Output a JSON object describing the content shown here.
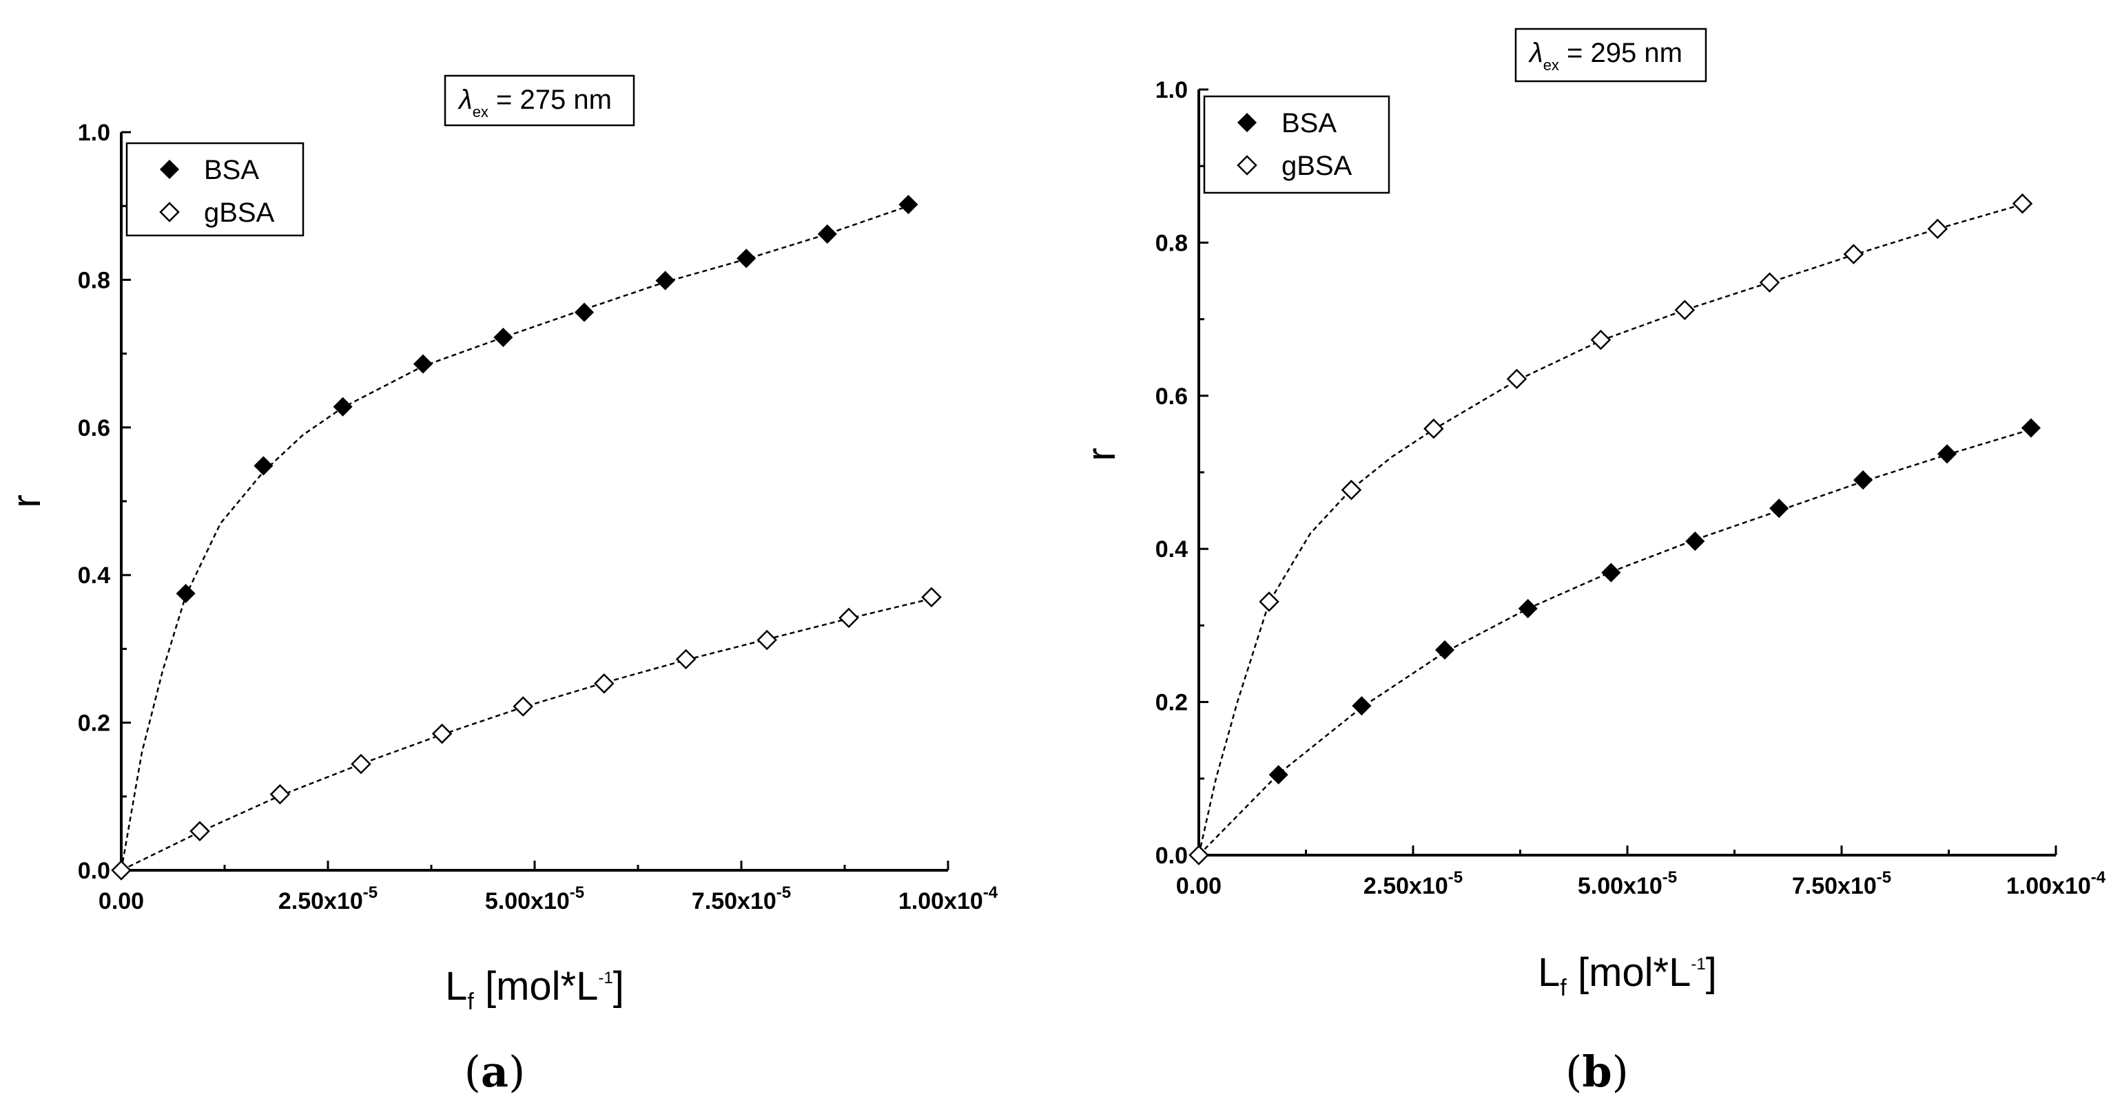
{
  "chart_data": [
    {
      "type": "scatter",
      "panel_label": "a",
      "annotation": {
        "symbol": "λ",
        "subscript": "ex",
        "rest": " = 275 nm"
      },
      "xlabel": {
        "main": "L",
        "sub": "f",
        "unit": " [mol*L",
        "sup": "-1",
        "close": "]"
      },
      "ylabel": "r",
      "xlim": [
        0,
        0.0001
      ],
      "ylim": [
        0,
        1.0
      ],
      "xtick_values": [
        0,
        2.5e-05,
        5e-05,
        7.5e-05,
        0.0001
      ],
      "xtick_labels": [
        {
          "m": "0.00",
          "e": ""
        },
        {
          "m": "2.50x10",
          "e": "-5"
        },
        {
          "m": "5.00x10",
          "e": "-5"
        },
        {
          "m": "7.50x10",
          "e": "-5"
        },
        {
          "m": "1.00x10",
          "e": "-4"
        }
      ],
      "ytick_values": [
        0,
        0.2,
        0.4,
        0.6,
        0.8,
        1.0
      ],
      "ytick_labels": [
        "0.0",
        "0.2",
        "0.4",
        "0.6",
        "0.8",
        "1.0"
      ],
      "legend_position": "top-left",
      "series": [
        {
          "name": "BSA",
          "marker": "filled-diamond",
          "x": [
            0,
            7.8e-06,
            1.72e-05,
            2.68e-05,
            3.65e-05,
            4.62e-05,
            5.6e-05,
            6.58e-05,
            7.56e-05,
            8.54e-05,
            9.52e-05
          ],
          "y": [
            0,
            0.375,
            0.548,
            0.628,
            0.686,
            0.722,
            0.756,
            0.799,
            0.829,
            0.862,
            0.902
          ],
          "fit_x": [
            0,
            2.5e-06,
            5e-06,
            7.8e-06,
            1.2e-05,
            1.72e-05,
            2.2e-05,
            2.68e-05,
            3.65e-05,
            4.62e-05,
            5.6e-05,
            6.58e-05,
            7.56e-05,
            8.54e-05,
            9.52e-05
          ],
          "fit_y": [
            0,
            0.16,
            0.27,
            0.372,
            0.47,
            0.54,
            0.59,
            0.627,
            0.683,
            0.722,
            0.76,
            0.797,
            0.828,
            0.862,
            0.9
          ]
        },
        {
          "name": "gBSA",
          "marker": "open-diamond",
          "x": [
            0,
            9.5e-06,
            1.92e-05,
            2.9e-05,
            3.88e-05,
            4.86e-05,
            5.84e-05,
            6.83e-05,
            7.81e-05,
            8.8e-05,
            9.8e-05
          ],
          "y": [
            0,
            0.053,
            0.103,
            0.144,
            0.185,
            0.222,
            0.253,
            0.286,
            0.312,
            0.342,
            0.37
          ],
          "fit_x": [
            0,
            9.5e-06,
            1.92e-05,
            2.9e-05,
            3.88e-05,
            4.86e-05,
            5.84e-05,
            6.83e-05,
            7.81e-05,
            8.8e-05,
            9.8e-05
          ],
          "fit_y": [
            0,
            0.052,
            0.101,
            0.144,
            0.184,
            0.221,
            0.254,
            0.285,
            0.313,
            0.341,
            0.368
          ]
        }
      ]
    },
    {
      "type": "scatter",
      "panel_label": "b",
      "annotation": {
        "symbol": "λ",
        "subscript": "ex",
        "rest": " = 295 nm"
      },
      "xlabel": {
        "main": "L",
        "sub": "f",
        "unit": " [mol*L",
        "sup": "-1",
        "close": "]"
      },
      "ylabel": "r",
      "xlim": [
        0,
        0.0001
      ],
      "ylim": [
        0,
        1.0
      ],
      "xtick_values": [
        0,
        2.5e-05,
        5e-05,
        7.5e-05,
        0.0001
      ],
      "xtick_labels": [
        {
          "m": "0.00",
          "e": ""
        },
        {
          "m": "2.50x10",
          "e": "-5"
        },
        {
          "m": "5.00x10",
          "e": "-5"
        },
        {
          "m": "7.50x10",
          "e": "-5"
        },
        {
          "m": "1.00x10",
          "e": "-4"
        }
      ],
      "ytick_values": [
        0,
        0.2,
        0.4,
        0.6,
        0.8,
        1.0
      ],
      "ytick_labels": [
        "0.0",
        "0.2",
        "0.4",
        "0.6",
        "0.8",
        "1.0"
      ],
      "legend_position": "top-left",
      "series": [
        {
          "name": "BSA",
          "marker": "filled-diamond",
          "x": [
            0,
            9.3e-06,
            1.9e-05,
            2.87e-05,
            3.84e-05,
            4.81e-05,
            5.79e-05,
            6.77e-05,
            7.75e-05,
            8.73e-05,
            9.71e-05
          ],
          "y": [
            0,
            0.105,
            0.195,
            0.268,
            0.322,
            0.369,
            0.41,
            0.453,
            0.49,
            0.524,
            0.558
          ],
          "fit_x": [
            0,
            9.3e-06,
            1.9e-05,
            2.87e-05,
            3.84e-05,
            4.81e-05,
            5.79e-05,
            6.77e-05,
            7.75e-05,
            8.73e-05,
            9.71e-05
          ],
          "fit_y": [
            0,
            0.106,
            0.193,
            0.265,
            0.322,
            0.37,
            0.412,
            0.45,
            0.488,
            0.523,
            0.556
          ]
        },
        {
          "name": "gBSA",
          "marker": "open-diamond",
          "x": [
            0,
            8.2e-06,
            1.78e-05,
            2.74e-05,
            3.71e-05,
            4.69e-05,
            5.67e-05,
            6.66e-05,
            7.64e-05,
            8.62e-05,
            9.61e-05
          ],
          "y": [
            0,
            0.331,
            0.477,
            0.557,
            0.622,
            0.673,
            0.712,
            0.748,
            0.785,
            0.818,
            0.851
          ],
          "fit_x": [
            0,
            2e-06,
            4.5e-06,
            8.2e-06,
            1.3e-05,
            1.78e-05,
            2.25e-05,
            2.74e-05,
            3.71e-05,
            4.69e-05,
            5.67e-05,
            6.66e-05,
            7.64e-05,
            8.62e-05,
            9.61e-05
          ],
          "fit_y": [
            0,
            0.1,
            0.2,
            0.33,
            0.42,
            0.478,
            0.52,
            0.556,
            0.62,
            0.672,
            0.712,
            0.748,
            0.784,
            0.818,
            0.85
          ]
        }
      ]
    }
  ]
}
